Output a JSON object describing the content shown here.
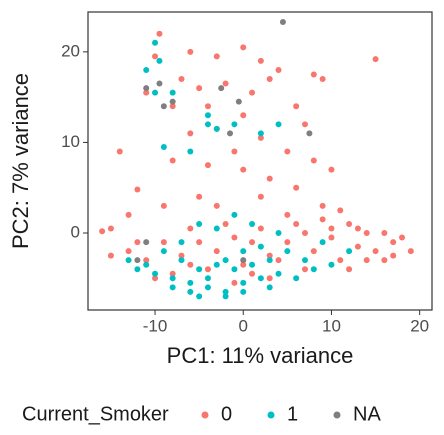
{
  "chart_data": {
    "type": "scatter",
    "x_label": "PC1: 11% variance",
    "y_label": "PC2: 7% variance",
    "legend_title": "Current_Smoker",
    "legend_position": "bottom",
    "xlim": [
      -17.6,
      21.4
    ],
    "ylim": [
      -8.5,
      24.4
    ],
    "xticks": [
      -10,
      0,
      10,
      20
    ],
    "yticks": [
      0,
      10,
      20
    ],
    "series": [
      {
        "name": "0",
        "color": "#F8766D",
        "x": [
          -9.5,
          -10,
          -6,
          -3,
          0,
          2,
          4,
          8,
          9,
          15,
          -7,
          -5,
          -2,
          1,
          3,
          -11,
          -8,
          -4,
          0,
          6,
          7,
          -6,
          -3,
          2,
          -1,
          5,
          -8,
          -4,
          0,
          3,
          8,
          10,
          -14,
          -12,
          -13,
          -15,
          -16,
          -9,
          -5,
          2,
          6,
          9,
          11,
          12,
          14,
          16,
          17,
          18,
          19,
          15,
          13,
          11,
          8,
          5,
          3,
          1,
          -1,
          -3,
          -5,
          -7,
          -9,
          -11,
          -13,
          -15,
          -6,
          -2,
          2,
          6,
          10,
          4,
          0,
          -4,
          -8,
          7,
          12,
          -10,
          3,
          -1,
          9,
          14,
          16,
          -12,
          5,
          -3,
          1,
          7,
          -6,
          13,
          10,
          17
        ],
        "y": [
          22,
          19.5,
          20,
          19.5,
          20.5,
          19,
          18,
          17.5,
          17,
          19.2,
          17,
          16,
          16.5,
          15.5,
          17,
          15.5,
          14,
          14,
          13,
          14,
          12,
          11,
          11.5,
          10.5,
          9,
          9,
          8,
          7.5,
          7,
          6,
          8,
          7,
          9,
          4.8,
          2,
          0.5,
          0.2,
          3,
          4,
          4,
          5,
          3,
          2.5,
          1,
          0,
          0,
          -1,
          -0.5,
          -2,
          -2,
          -1.5,
          -3,
          -2,
          -1,
          -2.5,
          -1,
          -0.5,
          -2,
          -1,
          -2.5,
          -1,
          -3,
          -2,
          -2.5,
          0.5,
          1,
          0.5,
          1,
          -0.5,
          -3,
          -3.5,
          -4,
          -4.5,
          -4,
          -4,
          -5,
          -5,
          -5.5,
          1.5,
          -3,
          -3,
          -1,
          2,
          3,
          -4.5,
          0,
          -3.5,
          0.5,
          0.5,
          -2.5
        ]
      },
      {
        "name": "1",
        "color": "#00BFC4",
        "x": [
          -10,
          -9.5,
          -11,
          -8,
          -10,
          -4,
          -4,
          -3,
          -1,
          2,
          4,
          -6,
          -9,
          -12,
          -10,
          -8,
          -6,
          -4,
          -2,
          0,
          2,
          4,
          6,
          8,
          10,
          -7,
          -5,
          -3,
          -1,
          1,
          3,
          5,
          7,
          -9,
          -11,
          -8,
          -6,
          -4,
          -2,
          0,
          2,
          4,
          -5,
          -3,
          -1,
          1,
          9,
          12,
          -13,
          -7,
          -2,
          3,
          -5,
          0
        ],
        "y": [
          21,
          19,
          18,
          15.5,
          15.5,
          13,
          12,
          11.5,
          12,
          11,
          12,
          9,
          9.5,
          -4,
          -4.5,
          -5,
          -5.5,
          -6,
          -6.5,
          -5.5,
          -5,
          -4.5,
          -5,
          -4,
          -3.5,
          -3,
          -4,
          -3.5,
          -4,
          -3.5,
          -3,
          -2,
          -3,
          -2,
          -3.5,
          -6,
          -6.5,
          -5,
          -3,
          -2,
          -1.5,
          0,
          1,
          0.5,
          2,
          1,
          -1,
          -2,
          -3,
          -1,
          -7,
          -6,
          -7,
          -6.5
        ]
      },
      {
        "name": "NA",
        "color": "#7F7F7F",
        "x": [
          -11,
          -8,
          -9.5,
          -2.5,
          -0.5,
          4.5,
          -1.5,
          7.5,
          -11,
          -9,
          -12,
          0
        ],
        "y": [
          16,
          14.5,
          16.5,
          16,
          14.5,
          23.3,
          11,
          11,
          -1,
          14,
          -3,
          -3
        ]
      }
    ]
  }
}
